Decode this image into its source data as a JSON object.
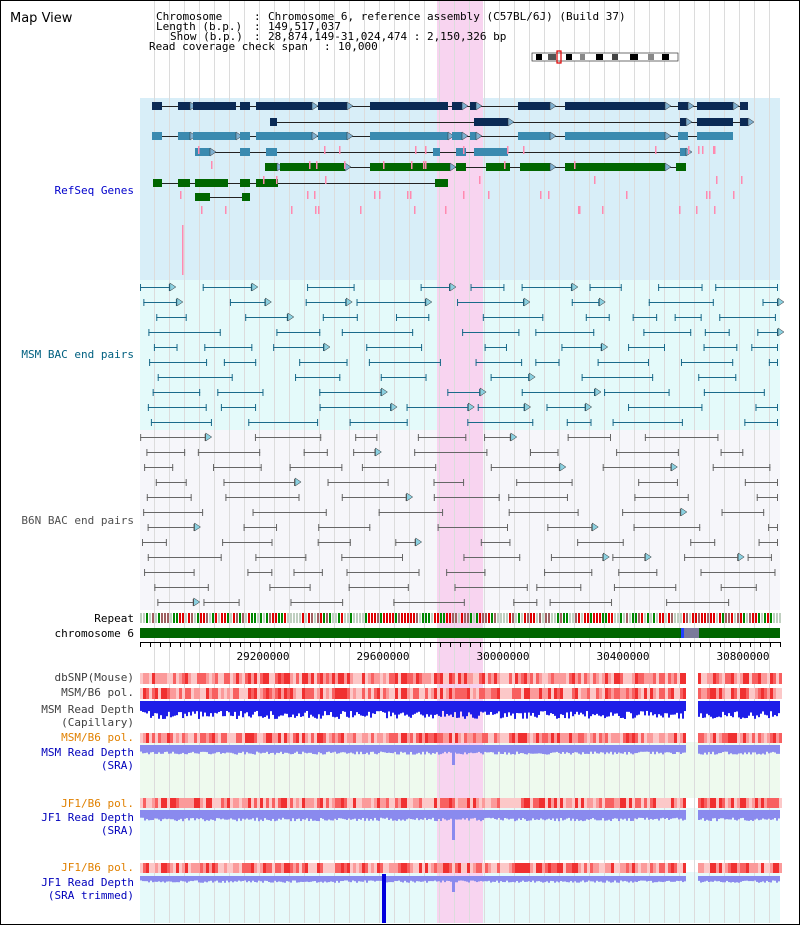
{
  "title": "Map View",
  "info": {
    "chromosome_label": "Chromosome",
    "chromosome_value": "Chromosome 6, reference assembly (C57BL/6J) (Build 37)",
    "length_label": "Length (b.p.)",
    "length_value": "149,517,037",
    "show_label": "Show (b.p.)",
    "show_value": "28,874,149-31,024,474 : 2,150,326 bp",
    "coverage_label": "Read coverage check span",
    "coverage_value": "10,000"
  },
  "tracks": {
    "refseq": "RefSeq Genes",
    "msm_bac": "MSM BAC end pairs",
    "b6n_bac": "B6N BAC end pairs",
    "repeat": "Repeat",
    "chromosome": "chromosome 6",
    "dbsnp": "dbSNP(Mouse)",
    "msm_b6_pol_1": "MSM/B6 pol.",
    "msm_depth_cap_1": "MSM Read Depth",
    "msm_depth_cap_2": "(Capillary)",
    "msm_b6_pol_2": "MSM/B6 pol.",
    "msm_depth_sra_1": "MSM Read Depth",
    "msm_depth_sra_2": "(SRA)",
    "jf1_b6_pol_1": "JF1/B6 pol.",
    "jf1_depth_sra_1": "JF1 Read Depth",
    "jf1_depth_sra_2": "(SRA)",
    "jf1_b6_pol_2": "JF1/B6 pol.",
    "jf1_depth_trim_1": "JF1 Read Depth",
    "jf1_depth_trim_2": "(SRA trimmed)"
  },
  "axis": {
    "ticks": [
      "29200000",
      "29600000",
      "30000000",
      "30400000",
      "30800000"
    ]
  },
  "colors": {
    "refseq_bg": "#d8eef8",
    "msm_bg": "#e4fafa",
    "b6n_bg": "#f6f6fa",
    "highlight": "#f8d4f0",
    "refseq_label": "#0000cc",
    "msm_label": "#006080",
    "b6n_label": "#505050",
    "pol_label": "#e08000",
    "depth_label": "#0000bb",
    "chromosome_bar": "#006600"
  }
}
